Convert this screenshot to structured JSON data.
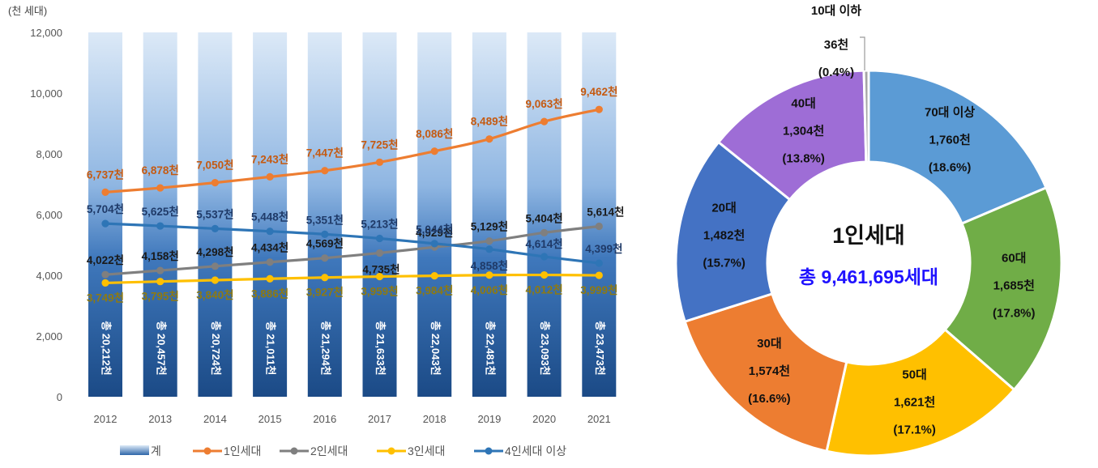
{
  "chart_data": [
    {
      "type": "bar",
      "y_unit_label": "(천 세대)",
      "ylim": [
        0,
        12000
      ],
      "yticks": [
        "0",
        "2,000",
        "4,000",
        "6,000",
        "8,000",
        "10,000",
        "12,000"
      ],
      "ytick_values": [
        0,
        2000,
        4000,
        6000,
        8000,
        10000,
        12000
      ],
      "categories": [
        "2012",
        "2013",
        "2014",
        "2015",
        "2016",
        "2017",
        "2018",
        "2019",
        "2020",
        "2021"
      ],
      "bars": {
        "name": "계",
        "values": [
          20212,
          20457,
          20724,
          21011,
          21294,
          21633,
          22043,
          22481,
          23093,
          23473
        ],
        "labels": [
          "총 20,212천",
          "총 20,457천",
          "총 20,724천",
          "총 21,011천",
          "총 21,294천",
          "총 21,633천",
          "총 22,043천",
          "총 22,481천",
          "총 23,093천",
          "총 23,473천"
        ]
      },
      "series": [
        {
          "name": "1인세대",
          "color": "#ED7D31",
          "label_color": "#C55A11",
          "values": [
            6737,
            6878,
            7050,
            7243,
            7447,
            7725,
            8086,
            8489,
            9063,
            9462
          ],
          "labels": [
            "6,737천",
            "6,878천",
            "7,050천",
            "7,243천",
            "7,447천",
            "7,725천",
            "8,086천",
            "8,489천",
            "9,063천",
            "9,462천"
          ]
        },
        {
          "name": "2인세대",
          "color": "#7F7F7F",
          "label_color": "#1A1A1A",
          "values": [
            4022,
            4158,
            4298,
            4434,
            4569,
            4735,
            4929,
            5129,
            5404,
            5614
          ],
          "labels": [
            "4,022천",
            "4,158천",
            "4,298천",
            "4,434천",
            "4,569천",
            "4,735천",
            "4,929천",
            "5,129천",
            "5,404천",
            "5,614천"
          ]
        },
        {
          "name": "3인세대",
          "color": "#FFC000",
          "label_color": "#8E7A12",
          "values": [
            3749,
            3795,
            3840,
            3886,
            3927,
            3959,
            3984,
            4006,
            4012,
            3999
          ],
          "labels": [
            "3,749천",
            "3,795천",
            "3,840천",
            "3,886천",
            "3,927천",
            "3,959천",
            "3,984천",
            "4,006천",
            "4,012천",
            "3,999천"
          ]
        },
        {
          "name": "4인세대 이상",
          "color": "#2E75B6",
          "label_color": "#1F3A68",
          "values": [
            5704,
            5625,
            5537,
            5448,
            5351,
            5213,
            5044,
            4858,
            4614,
            4399
          ],
          "labels": [
            "5,704천",
            "5,625천",
            "5,537천",
            "5,448천",
            "5,351천",
            "5,213천",
            "5,044천",
            "4,858천",
            "4,614천",
            "4,399천"
          ]
        }
      ],
      "legend": [
        "계",
        "1인세대",
        "2인세대",
        "3인세대",
        "4인세대 이상"
      ],
      "legend_position": "bottom"
    },
    {
      "type": "pie",
      "center_title": "1인세대",
      "center_total": "총 9,461,695세대",
      "slices": [
        {
          "name": "70대 이상",
          "value": 1760,
          "value_label": "1,760천",
          "pct": 18.6,
          "pct_label": "(18.6%)",
          "color": "#5B9BD5"
        },
        {
          "name": "60대",
          "value": 1685,
          "value_label": "1,685천",
          "pct": 17.8,
          "pct_label": "(17.8%)",
          "color": "#70AD47"
        },
        {
          "name": "50대",
          "value": 1621,
          "value_label": "1,621천",
          "pct": 17.1,
          "pct_label": "(17.1%)",
          "color": "#FFC000"
        },
        {
          "name": "30대",
          "value": 1574,
          "value_label": "1,574천",
          "pct": 16.6,
          "pct_label": "(16.6%)",
          "color": "#ED7D31"
        },
        {
          "name": "20대",
          "value": 1482,
          "value_label": "1,482천",
          "pct": 15.7,
          "pct_label": "(15.7%)",
          "color": "#4472C4"
        },
        {
          "name": "40대",
          "value": 1304,
          "value_label": "1,304천",
          "pct": 13.8,
          "pct_label": "(13.8%)",
          "color": "#9E6DD6"
        },
        {
          "name": "10대 이하",
          "value": 36,
          "value_label": "36천",
          "pct": 0.4,
          "pct_label": "(0.4%)",
          "color": "#A5A5A5"
        }
      ]
    }
  ]
}
